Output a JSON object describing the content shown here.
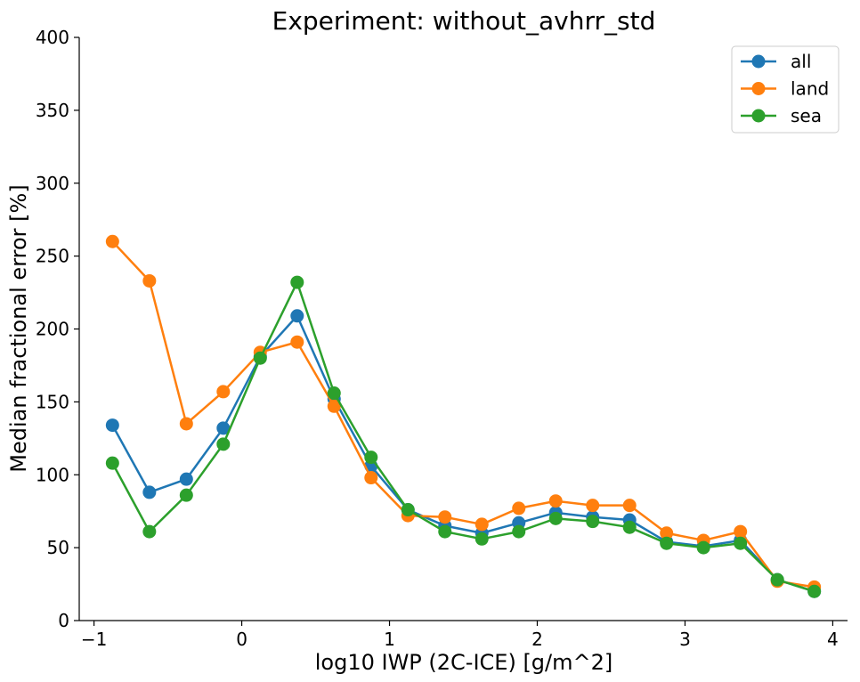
{
  "chart_data": {
    "type": "line",
    "title": "Experiment: without_avhrr_std",
    "xlabel": "log10 IWP (2C-ICE) [g/m^2]",
    "ylabel": "Median fractional error [%]",
    "xlim": [
      -1.1,
      4.1
    ],
    "ylim": [
      0,
      400
    ],
    "x_ticks": [
      -1,
      0,
      1,
      2,
      3,
      4
    ],
    "x_tick_labels": [
      "−1",
      "0",
      "1",
      "2",
      "3",
      "4"
    ],
    "y_ticks": [
      0,
      50,
      100,
      150,
      200,
      250,
      300,
      350,
      400
    ],
    "y_tick_labels": [
      "0",
      "50",
      "100",
      "150",
      "200",
      "250",
      "300",
      "350",
      "400"
    ],
    "grid": false,
    "legend_position": "top-right",
    "x": [
      -0.875,
      -0.625,
      -0.375,
      -0.125,
      0.125,
      0.375,
      0.625,
      0.875,
      1.125,
      1.375,
      1.625,
      1.875,
      2.125,
      2.375,
      2.625,
      2.875,
      3.125,
      3.375,
      3.625,
      3.875
    ],
    "series": [
      {
        "name": "all",
        "color": "#1f77b4",
        "values": [
          134,
          88,
          97,
          132,
          181,
          209,
          152,
          106,
          76,
          65,
          60,
          67,
          74,
          71,
          69,
          54,
          51,
          55,
          28,
          20
        ]
      },
      {
        "name": "land",
        "color": "#ff7f0e",
        "values": [
          260,
          233,
          135,
          157,
          184,
          191,
          147,
          98,
          72,
          71,
          66,
          77,
          82,
          79,
          79,
          60,
          55,
          61,
          27,
          23
        ]
      },
      {
        "name": "sea",
        "color": "#2ca02c",
        "values": [
          108,
          61,
          86,
          121,
          180,
          232,
          156,
          112,
          76,
          61,
          56,
          61,
          70,
          68,
          64,
          53,
          50,
          53,
          28,
          20
        ]
      }
    ]
  }
}
